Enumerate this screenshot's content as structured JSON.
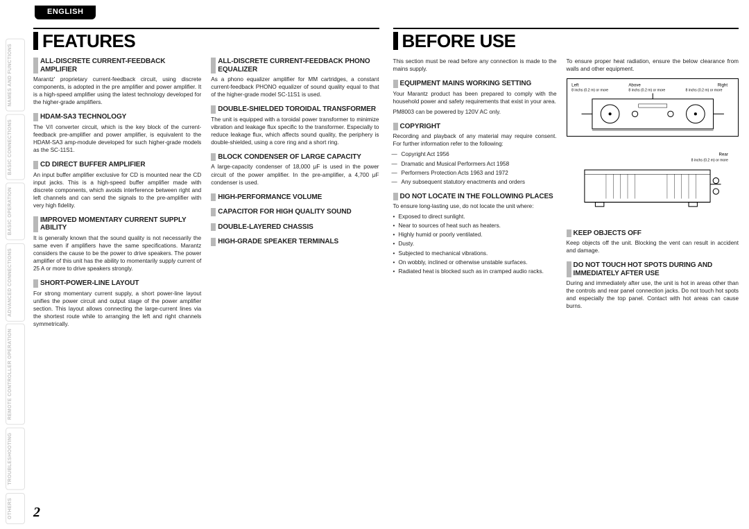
{
  "lang": "ENGLISH",
  "page_number": "2",
  "side_tabs": [
    "NAMES AND\nFUNCTIONS",
    "BASIC\nCONNECTIONS",
    "BASIC\nOPERATION",
    "ADVANCED\nCONNECTIONS",
    "REMOTE CONTROLLER\nOPERATION",
    "TROUBLESHOOTING",
    "OTHERS"
  ],
  "left": {
    "title": "FEATURES",
    "col1": [
      {
        "h": "ALL-DISCRETE CURRENT-FEEDBACK AMPLIFIER",
        "p": [
          "Marantz' proprietary current-feedback circuit, using discrete components, is adopted in the pre amplifier and power amplifier. It is a high-speed amplifier using the latest technology developed for the higher-grade amplifiers."
        ]
      },
      {
        "h": "HDAM-SA3 TECHNOLOGY",
        "p": [
          "The V/I converter circuit, which is the key block of the current-feedback pre-amplifier and power amplifier, is equivalent to the HDAM-SA3 amp-module developed for such higher-grade models as the SC-11S1."
        ]
      },
      {
        "h": "CD DIRECT BUFFER AMPLIFIER",
        "p": [
          "An input buffer amplifier exclusive for CD is mounted near the CD input jacks. This is a high-speed buffer amplifier made with discrete components, which avoids interference between right and left channels and can send the signals to the pre-amplifier with very high fidelity."
        ]
      },
      {
        "h": "IMPROVED MOMENTARY CURRENT SUPPLY ABILITY",
        "p": [
          "It is generally known that the sound quality is not necessarily the same even if amplifiers have the same specifications. Marantz considers the cause to be the power to drive speakers. The power amplifier of this unit has the ability to momentarily supply current of 25 A or more to drive speakers strongly."
        ]
      },
      {
        "h": "SHORT-POWER-LINE LAYOUT",
        "p": [
          "For strong momentary current supply, a short power-line layout unifies the power circuit and output stage of the power amplifier section. This layout allows connecting the large-current lines via the shortest route while to arranging the left and right channels symmetrically."
        ]
      }
    ],
    "col2": [
      {
        "h": "ALL-DISCRETE CURRENT-FEEDBACK PHONO EQUALIZER",
        "p": [
          "As a phono equalizer amplifier for MM cartridges, a constant current-feedback PHONO equalizer of sound quality equal to that of the higher-grade model SC-11S1 is used."
        ]
      },
      {
        "h": "DOUBLE-SHIELDED TOROIDAL TRANSFORMER",
        "p": [
          "The unit is equipped with a toroidal power transformer to minimize vibration and leakage flux specific to the transformer. Especially to reduce leakage flux, which affects sound quality, the periphery is double-shielded, using a core ring and a short ring."
        ]
      },
      {
        "h": "BLOCK CONDENSER OF LARGE CAPACITY",
        "p": [
          "A large-capacity condenser of 18,000 μF is used in the power circuit of the power amplifier. In the pre-amplifier, a 4,700 μF condenser is used."
        ]
      },
      {
        "h": "HIGH-PERFORMANCE VOLUME",
        "p": []
      },
      {
        "h": "CAPACITOR FOR HIGH QUALITY SOUND",
        "p": []
      },
      {
        "h": "DOUBLE-LAYERED CHASSIS",
        "p": []
      },
      {
        "h": "HIGH-GRADE SPEAKER TERMINALS",
        "p": []
      }
    ]
  },
  "right": {
    "title": "BEFORE USE",
    "col1": {
      "intro": "This section must be read before any connection is made to the mains supply.",
      "sects": [
        {
          "h": "EQUIPMENT MAINS WORKING SETTING",
          "p": [
            "Your Marantz product has been prepared to comply with the household power and safety requirements that exist in your area.",
            "PM8003 can be powered by 120V AC only."
          ]
        },
        {
          "h": "COPYRIGHT",
          "p": [
            "Recording and playback of any material may require consent. For further information refer to the following:"
          ],
          "dash": [
            "Copyright Act 1956",
            "Dramatic and Musical Performers Act 1958",
            "Performers Protection Acts 1963 and 1972",
            "Any subsequent statutory enactments and orders"
          ]
        },
        {
          "h": "DO NOT LOCATE IN THE FOLLOWING PLACES",
          "p": [
            "To ensure long-lasting use, do not locate the unit where:"
          ],
          "bullets": [
            "Exposed to direct sunlight.",
            "Near to sources of heat such as heaters.",
            "Highly humid or poorly ventilated.",
            "Dusty.",
            "Subjected to mechanical vibrations.",
            "On wobbly, inclined or otherwise unstable surfaces.",
            "Radiated heat is blocked such as in cramped audio racks."
          ]
        }
      ]
    },
    "col2": {
      "intro": "To ensure proper heat radiation, ensure the below clearance from walls and other equipment.",
      "diagram_top": {
        "left_label": "Left",
        "above_label": "Above",
        "right_label": "Right",
        "clearances": [
          "8 inchs (0.2 m) or more",
          "8 inchs (0.2 m) or more",
          "8 inchs (0.2 m) or more"
        ]
      },
      "diagram_side": {
        "rear_label": "Rear",
        "clearance": "8 inchs (0.2 m) or more"
      },
      "sects": [
        {
          "h": "KEEP OBJECTS OFF",
          "p": [
            "Keep objects off the unit. Blocking the vent can result in accident and damage."
          ]
        },
        {
          "h": "DO NOT TOUCH HOT SPOTS DURING AND IMMEDIATELY AFTER USE",
          "p": [
            "During and immediately after use, the unit is hot in areas other than the controls and rear panel connection jacks. Do not touch hot spots and especially the top panel. Contact with hot areas can cause burns."
          ]
        }
      ]
    }
  }
}
